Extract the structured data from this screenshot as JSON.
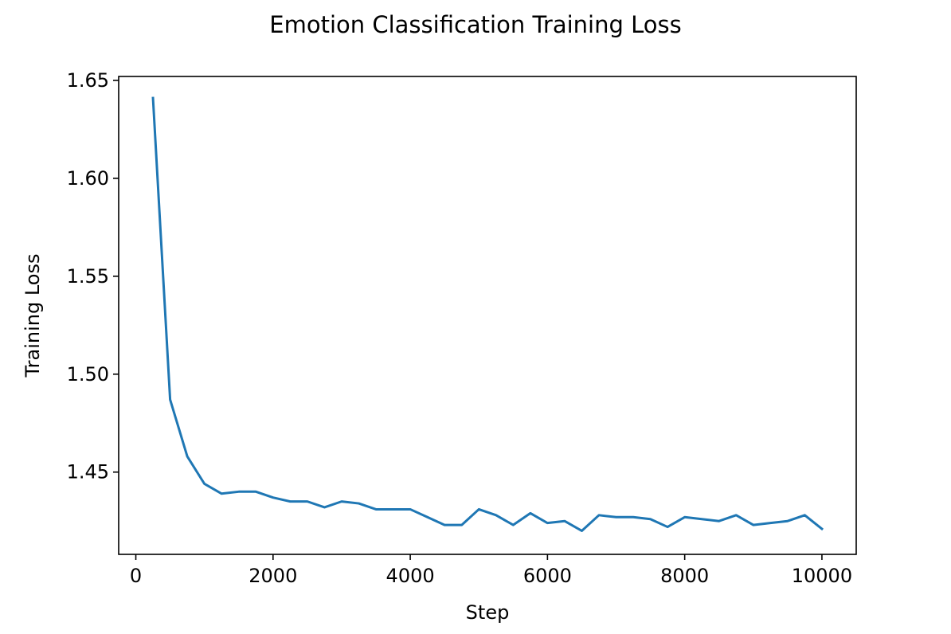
{
  "chart_data": {
    "type": "line",
    "title": "Emotion Classification Training Loss",
    "xlabel": "Step",
    "ylabel": "Training Loss",
    "xlim": [
      -250,
      10500
    ],
    "ylim": [
      1.408,
      1.652
    ],
    "xticks": [
      0,
      2000,
      4000,
      6000,
      8000,
      10000
    ],
    "yticks": [
      1.45,
      1.5,
      1.55,
      1.6,
      1.65
    ],
    "xtick_labels": [
      "0",
      "2000",
      "4000",
      "6000",
      "8000",
      "10000"
    ],
    "ytick_labels": [
      "1.45",
      "1.50",
      "1.55",
      "1.60",
      "1.65"
    ],
    "grid": false,
    "legend": "none",
    "series": [
      {
        "color": "#1f77b4",
        "x": [
          250,
          500,
          750,
          1000,
          1250,
          1500,
          1750,
          2000,
          2250,
          2500,
          2750,
          3000,
          3250,
          3500,
          3750,
          4000,
          4250,
          4500,
          4750,
          5000,
          5250,
          5500,
          5750,
          6000,
          6250,
          6500,
          6750,
          7000,
          7250,
          7500,
          7750,
          8000,
          8250,
          8500,
          8750,
          9000,
          9250,
          9500,
          9750,
          10000
        ],
        "y": [
          1.641,
          1.487,
          1.458,
          1.444,
          1.439,
          1.44,
          1.44,
          1.437,
          1.435,
          1.435,
          1.432,
          1.435,
          1.434,
          1.431,
          1.431,
          1.431,
          1.427,
          1.423,
          1.423,
          1.431,
          1.428,
          1.423,
          1.429,
          1.424,
          1.425,
          1.42,
          1.428,
          1.427,
          1.427,
          1.426,
          1.422,
          1.427,
          1.426,
          1.425,
          1.428,
          1.423,
          1.424,
          1.425,
          1.428,
          1.421
        ]
      }
    ]
  }
}
